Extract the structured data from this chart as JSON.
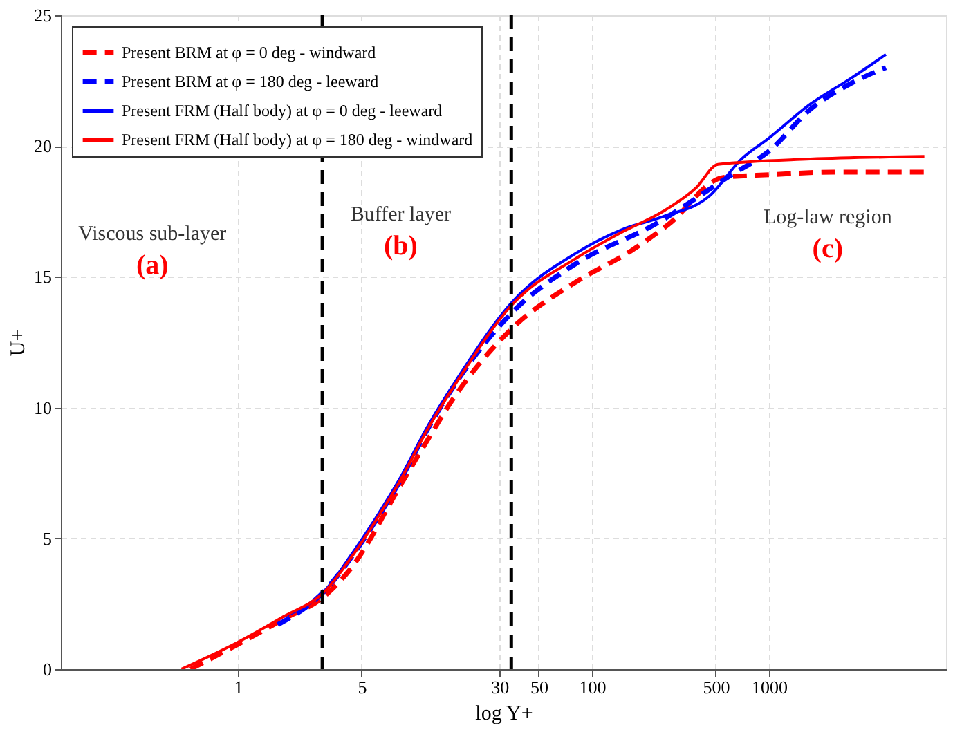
{
  "chart_data": {
    "type": "line",
    "xlabel": "log Y+",
    "ylabel": "U+",
    "log": "x",
    "xlim": [
      0.1,
      10000
    ],
    "xticks": [
      1,
      5,
      30,
      50,
      100,
      500,
      1000
    ],
    "ylim": [
      0,
      25
    ],
    "yticks": [
      0,
      5,
      10,
      15,
      20,
      25
    ],
    "grid": true,
    "legend": "top left",
    "marker": "none",
    "series": [
      {
        "name": "Present BRM at φ = 0 deg - windward",
        "color": "#ff0000",
        "line_style": "dashed",
        "x": [
          0.54,
          1.0,
          1.8,
          3.09,
          4.4,
          8.4,
          11.4,
          16.3,
          35,
          81,
          167,
          270,
          553,
          998,
          2310,
          7540
        ],
        "values": [
          0,
          0.95,
          1.9,
          2.8,
          3.9,
          7.1,
          8.6,
          10.3,
          13.0,
          14.8,
          16.0,
          17.0,
          18.8,
          18.9,
          19.0,
          19.0
        ]
      },
      {
        "name": "Present BRM at φ = 180 deg - leeward",
        "color": "#0000ff",
        "line_style": "dashed",
        "x": [
          1.68,
          3.09,
          4.4,
          6.3,
          8.4,
          11.4,
          18.5,
          35,
          81,
          226,
          615,
          998,
          1710,
          2920,
          4570
        ],
        "values": [
          1.7,
          3.0,
          4.3,
          5.9,
          7.3,
          9.0,
          11.3,
          13.6,
          15.5,
          17.0,
          18.9,
          19.8,
          21.4,
          22.4,
          23.0
        ]
      },
      {
        "name": "Present FRM (Half body) at φ = 0 deg - leeward",
        "color": "#0000ff",
        "line_style": "solid",
        "x": [
          1.8,
          3.09,
          4.4,
          6.3,
          8.4,
          11.4,
          18.5,
          35,
          81,
          147,
          252,
          463,
          698,
          998,
          1710,
          2920,
          4570
        ],
        "values": [
          2.0,
          3.0,
          4.4,
          6.0,
          7.4,
          9.1,
          11.4,
          14.0,
          15.9,
          16.8,
          17.3,
          18.1,
          19.5,
          20.3,
          21.6,
          22.6,
          23.5
        ]
      },
      {
        "name": "Present FRM (Half body) at φ = 180 deg - windward",
        "color": "#ff0000",
        "line_style": "solid",
        "x": [
          0.48,
          1.0,
          1.8,
          3.09,
          4.4,
          6.3,
          8.4,
          11.4,
          18.5,
          35,
          81,
          147,
          252,
          387,
          515,
          1710,
          7540
        ],
        "values": [
          0,
          1.03,
          2.0,
          2.97,
          4.3,
          5.9,
          7.3,
          9.0,
          11.3,
          13.9,
          15.7,
          16.7,
          17.5,
          18.4,
          19.3,
          19.5,
          19.6
        ]
      }
    ],
    "ref_lines": [
      {
        "axis": "x",
        "value": 3,
        "color": "#000000",
        "line_style": "dashed"
      },
      {
        "axis": "x",
        "value": 35,
        "color": "#000000",
        "line_style": "dashed"
      }
    ],
    "annotations": [
      "Viscous sub-layer",
      "(a)",
      "Buffer layer",
      "(b)",
      "Log-law region",
      "(c)"
    ]
  }
}
